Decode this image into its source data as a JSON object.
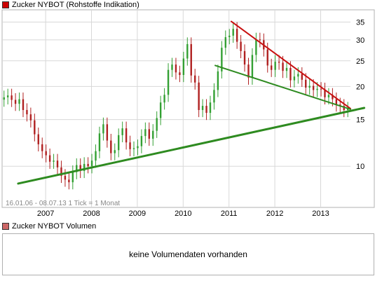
{
  "legend": {
    "price_label": "Zucker NYBOT (Rohstoffe Indikation)",
    "volume_label": "Zucker NYBOT Volumen",
    "price_color": "#cc0000"
  },
  "info_text": "16.01.06 - 08.07.13   1 Tick = 1 Monat",
  "volume_panel": {
    "message": "keine Volumendaten vorhanden"
  },
  "colors": {
    "up": "#33a033",
    "down": "#b02020",
    "trend_up": "#2e8b20",
    "trend_down": "#c81010",
    "grid": "#d8d8d8"
  },
  "chart_data": {
    "type": "candlestick",
    "title": "Zucker NYBOT (Rohstoffe Indikation)",
    "date_range": "16.01.06 - 08.07.13",
    "interval": "1 Monat",
    "y_scale": "log",
    "ylim": [
      7.8,
      38
    ],
    "xlim": [
      2006.05,
      2013.65
    ],
    "x_ticks": [
      {
        "label": "2007",
        "value": 2007
      },
      {
        "label": "2008",
        "value": 2008
      },
      {
        "label": "2009",
        "value": 2009
      },
      {
        "label": "2010",
        "value": 2010
      },
      {
        "label": "2011",
        "value": 2011
      },
      {
        "label": "2012",
        "value": 2012
      },
      {
        "label": "2013",
        "value": 2013
      }
    ],
    "y_ticks": [
      10,
      15,
      20,
      25,
      30,
      35
    ],
    "close_series": [
      18.2,
      18.5,
      17.8,
      17.2,
      17.9,
      16.3,
      15.7,
      14.9,
      13.2,
      12.1,
      11.4,
      11.0,
      10.4,
      10.5,
      9.9,
      9.2,
      8.9,
      8.7,
      9.5,
      10.1,
      9.6,
      10.2,
      10.0,
      10.5,
      11.4,
      13.3,
      14.4,
      12.5,
      11.2,
      11.5,
      13.1,
      13.9,
      12.3,
      11.6,
      11.7,
      11.9,
      13.0,
      13.8,
      12.7,
      13.6,
      15.2,
      17.4,
      18.6,
      23.1,
      24.2,
      22.6,
      22.1,
      25.5,
      28.9,
      22.0,
      20.7,
      16.3,
      16.9,
      15.9,
      17.4,
      19.4,
      22.8,
      28.0,
      30.7,
      31.1,
      33.0,
      29.5,
      27.2,
      24.2,
      21.6,
      26.3,
      30.1,
      29.9,
      27.6,
      24.0,
      23.1,
      24.8,
      24.6,
      22.9,
      23.5,
      21.1,
      21.8,
      22.3,
      21.2,
      19.8,
      20.1,
      19.4,
      19.6,
      19.5,
      18.2,
      18.6,
      17.9,
      17.1,
      16.9,
      16.3,
      16.5
    ],
    "trend_lines": [
      {
        "name": "support",
        "from": [
          2006.4,
          8.6
        ],
        "to": [
          2013.95,
          16.6
        ]
      },
      {
        "name": "resistance",
        "from": [
          2011.05,
          35.2
        ],
        "to": [
          2013.65,
          16.5
        ]
      },
      {
        "name": "channel",
        "from": [
          2010.7,
          24.0
        ],
        "to": [
          2013.65,
          16.4
        ]
      }
    ]
  }
}
